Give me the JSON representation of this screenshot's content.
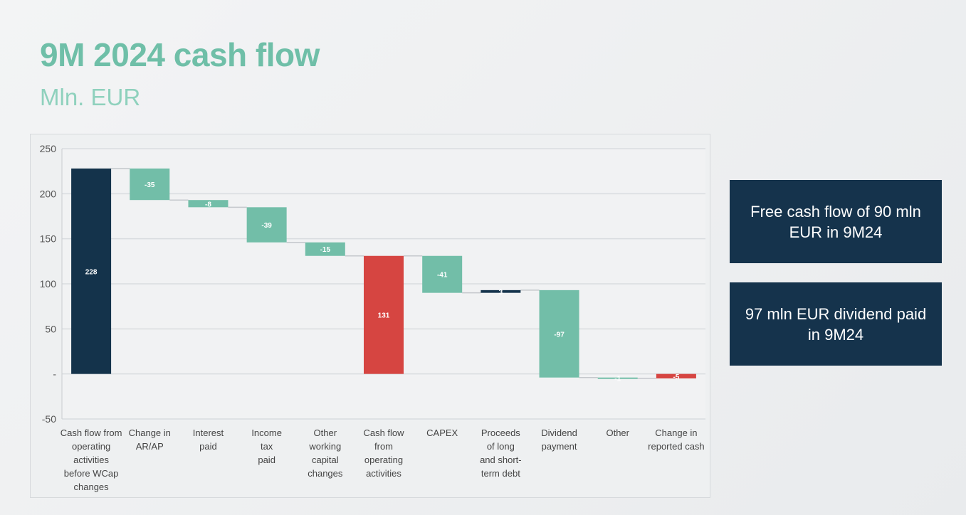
{
  "header": {
    "title": "9M 2024 cash flow",
    "subtitle": "Mln. EUR"
  },
  "callouts": [
    "Free cash flow of 90 mln EUR in 9M24",
    "97 mln EUR dividend paid in 9M24"
  ],
  "colors": {
    "total": "#14334b",
    "decrease": "#72bea8",
    "increase": "#14334b",
    "highlight": "#d64541",
    "title": "#6fbfa8"
  },
  "chart_data": {
    "type": "bar",
    "subtype": "waterfall",
    "ylim": [
      -50,
      250
    ],
    "y_ticks": [
      {
        "value": 250,
        "label": "250"
      },
      {
        "value": 200,
        "label": "200"
      },
      {
        "value": 150,
        "label": "150"
      },
      {
        "value": 100,
        "label": "100"
      },
      {
        "value": 50,
        "label": "50"
      },
      {
        "value": 0,
        "label": "-"
      },
      {
        "value": -50,
        "label": "-50"
      }
    ],
    "grid": true,
    "bars": [
      {
        "category": [
          "Cash flow from",
          "operating",
          "activities",
          "before WCap",
          "changes"
        ],
        "start": 0,
        "end": 228,
        "label": "228",
        "kind": "total"
      },
      {
        "category": [
          "Change in",
          "AR/AP"
        ],
        "start": 228,
        "end": 193,
        "label": "-35",
        "kind": "decrease"
      },
      {
        "category": [
          "Interest",
          "paid"
        ],
        "start": 193,
        "end": 185,
        "label": "-8",
        "kind": "decrease"
      },
      {
        "category": [
          "Income",
          "tax",
          "paid"
        ],
        "start": 185,
        "end": 146,
        "label": "-39",
        "kind": "decrease"
      },
      {
        "category": [
          "Other",
          "working",
          "capital",
          "changes"
        ],
        "start": 146,
        "end": 131,
        "label": "-15",
        "kind": "decrease"
      },
      {
        "category": [
          "Cash flow",
          "from",
          "operating",
          "activities"
        ],
        "start": 0,
        "end": 131,
        "label": "131",
        "kind": "highlight"
      },
      {
        "category": [
          "CAPEX"
        ],
        "start": 131,
        "end": 90,
        "label": "-41",
        "kind": "decrease"
      },
      {
        "category": [
          "Proceeds",
          "of long",
          "and short-",
          "term debt"
        ],
        "start": 90,
        "end": 93,
        "label": "3",
        "kind": "increase"
      },
      {
        "category": [
          "Dividend",
          "payment"
        ],
        "start": 93,
        "end": -4,
        "label": "-97",
        "kind": "decrease"
      },
      {
        "category": [
          "Other"
        ],
        "start": -4,
        "end": -5,
        "label": "-1",
        "kind": "decrease"
      },
      {
        "category": [
          "Change in",
          "reported cash"
        ],
        "start": 0,
        "end": -5,
        "label": "-5",
        "kind": "highlight"
      }
    ]
  }
}
